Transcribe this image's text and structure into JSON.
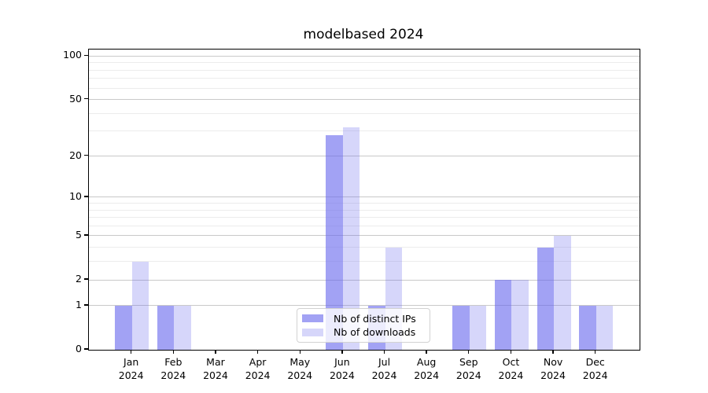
{
  "chart_data": {
    "type": "bar",
    "title": "modelbased 2024",
    "categories": [
      "Jan",
      "Feb",
      "Mar",
      "Apr",
      "May",
      "Jun",
      "Jul",
      "Aug",
      "Sep",
      "Oct",
      "Nov",
      "Dec"
    ],
    "x_tick_year": "2024",
    "series": [
      {
        "name": "Nb of distinct IPs",
        "color": "rgba(105,105,238,0.62)",
        "values": [
          1,
          1,
          0,
          0,
          0,
          28,
          1,
          0,
          1,
          2,
          4,
          1
        ]
      },
      {
        "name": "Nb of downloads",
        "color": "rgba(105,105,238,0.27)",
        "values": [
          3,
          1,
          0,
          0,
          0,
          32,
          4,
          0,
          1,
          2,
          5,
          1
        ]
      }
    ],
    "y_scale": "log1p",
    "y_ticks": [
      0,
      1,
      2,
      5,
      10,
      20,
      50,
      100
    ],
    "y_minor_gridlines": [
      3,
      4,
      6,
      7,
      8,
      9,
      30,
      40,
      60,
      70,
      80,
      90
    ],
    "ylim": [
      0,
      111
    ],
    "grid": true,
    "legend_position": "lower center",
    "colors": {
      "grid_major": "#c9c9c9",
      "grid_minor": "#ececec",
      "axis": "#000000",
      "background": "#ffffff"
    }
  }
}
